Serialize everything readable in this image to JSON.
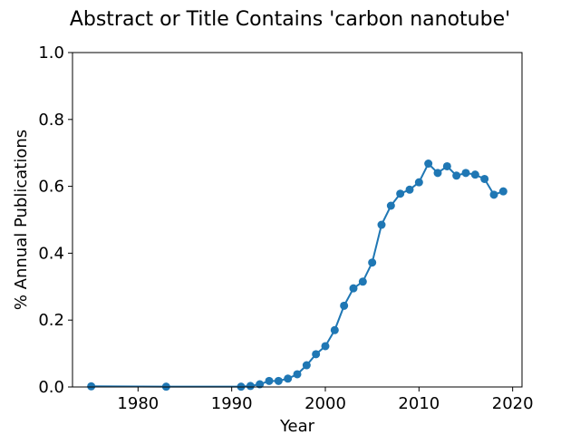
{
  "chart_data": {
    "type": "line",
    "title": "Abstract or Title Contains 'carbon nanotube'",
    "xlabel": "Year",
    "ylabel": "% Annual Publications",
    "xlim": [
      1973,
      2021
    ],
    "ylim": [
      0,
      1.0
    ],
    "xticks": [
      1980,
      1990,
      2000,
      2010,
      2020
    ],
    "xtick_labels": [
      "1980",
      "1990",
      "2000",
      "2010",
      "2020"
    ],
    "yticks": [
      0.0,
      0.2,
      0.4,
      0.6,
      0.8,
      1.0
    ],
    "ytick_labels": [
      "0.0",
      "0.2",
      "0.4",
      "0.6",
      "0.8",
      "1.0"
    ],
    "grid": false,
    "color": "#1f77b4",
    "series": [
      {
        "x": [
          1975,
          1983,
          1991,
          1992,
          1993,
          1994,
          1995,
          1996,
          1997,
          1998,
          1999,
          2000,
          2001,
          2002,
          2003,
          2004,
          2005,
          2006,
          2007,
          2008,
          2009,
          2010,
          2011,
          2012,
          2013,
          2014,
          2015,
          2016,
          2017,
          2018,
          2019
        ],
        "y": [
          0.002,
          0.001,
          0.001,
          0.003,
          0.008,
          0.018,
          0.018,
          0.025,
          0.038,
          0.065,
          0.098,
          0.122,
          0.17,
          0.243,
          0.295,
          0.315,
          0.372,
          0.485,
          0.542,
          0.578,
          0.59,
          0.612,
          0.668,
          0.64,
          0.66,
          0.632,
          0.64,
          0.635,
          0.622,
          0.575,
          0.585
        ]
      }
    ]
  }
}
